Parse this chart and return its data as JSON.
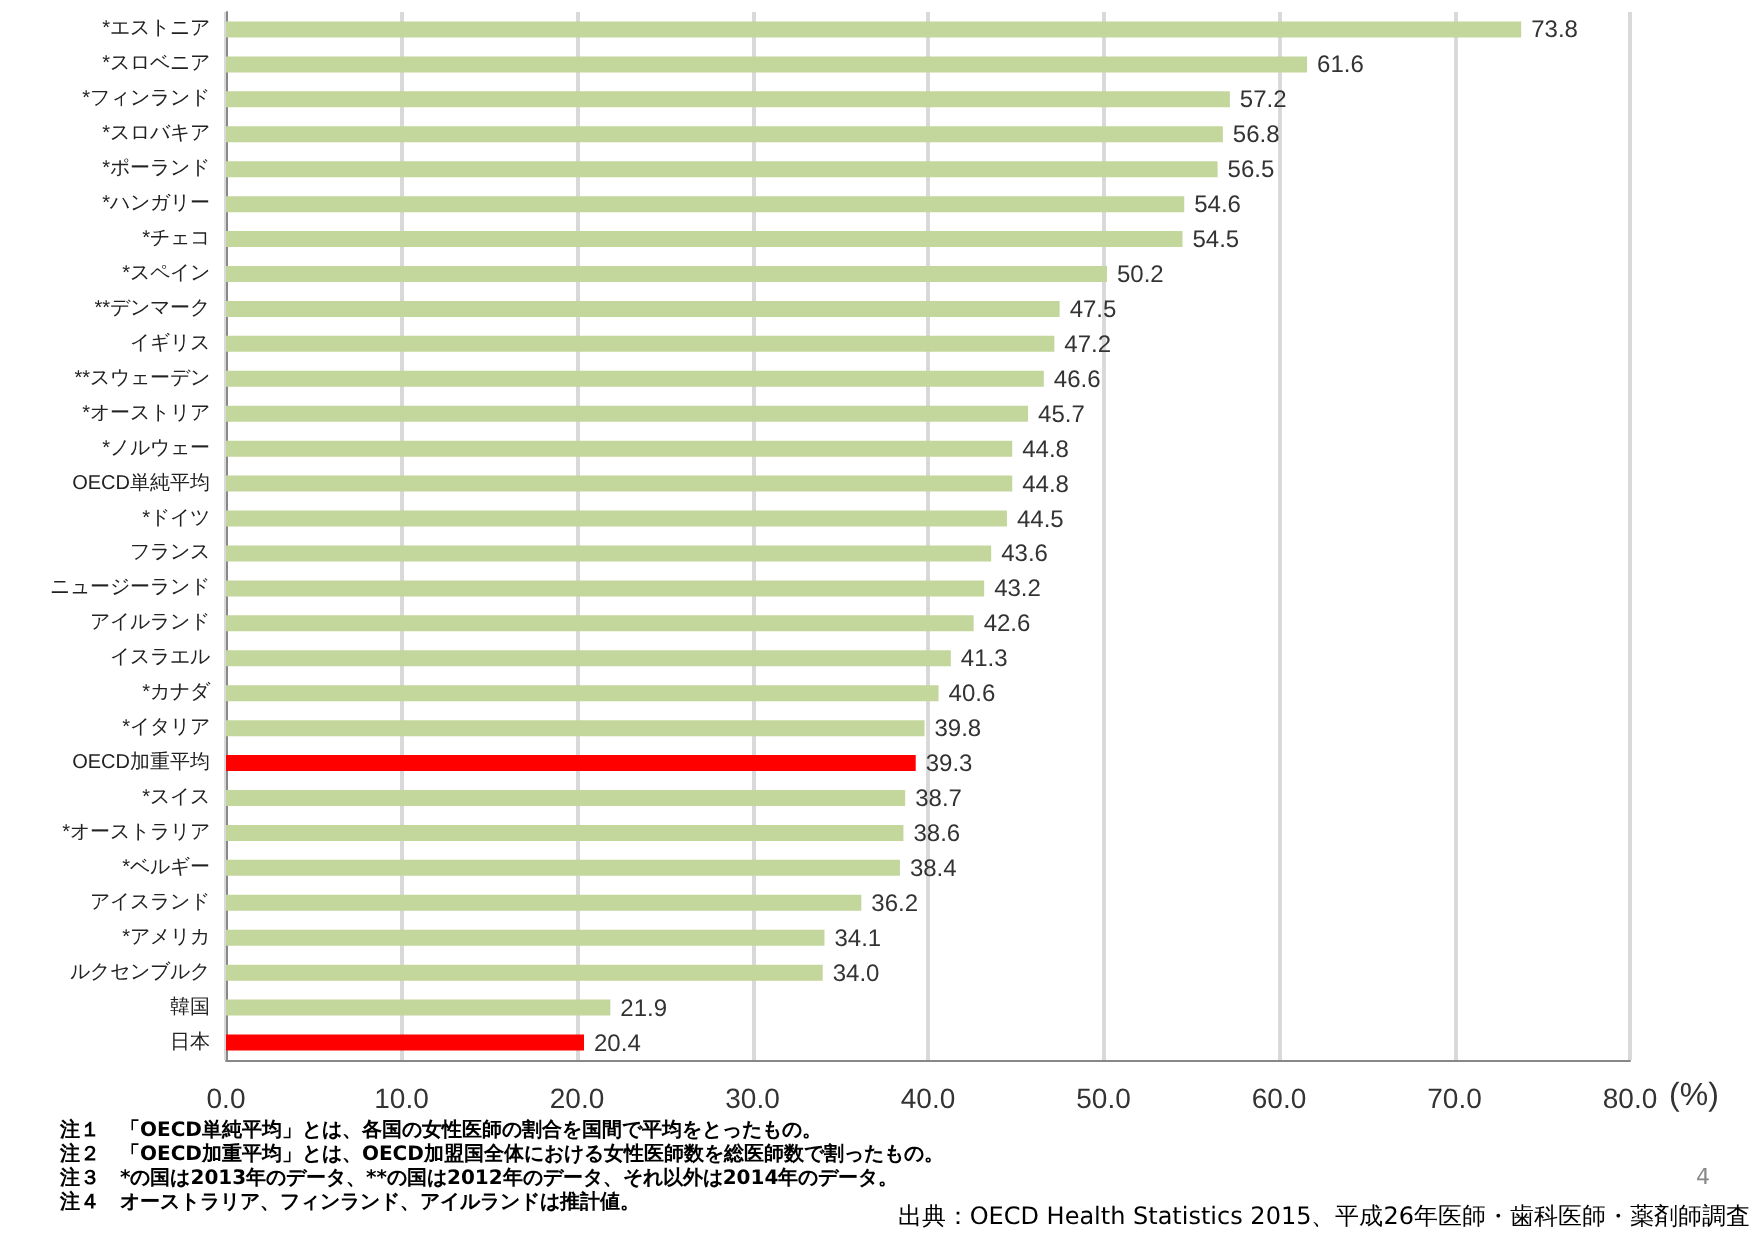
{
  "chart_data": {
    "type": "bar",
    "orientation": "horizontal",
    "xlabel": "(%)",
    "categories": [
      "*エストニア",
      "*スロベニア",
      "*フィンランド",
      "*スロバキア",
      "*ポーランド",
      "*ハンガリー",
      "*チェコ",
      "*スペイン",
      "**デンマーク",
      "イギリス",
      "**スウェーデン",
      "*オーストリア",
      "*ノルウェー",
      "OECD単純平均",
      "*ドイツ",
      "フランス",
      "ニュージーランド",
      "アイルランド",
      "イスラエル",
      "*カナダ",
      "*イタリア",
      "OECD加重平均",
      "*スイス",
      "*オーストラリア",
      "*ベルギー",
      "アイスランド",
      "*アメリカ",
      "ルクセンブルク",
      "韓国",
      "日本"
    ],
    "values": [
      73.8,
      61.6,
      57.2,
      56.8,
      56.5,
      54.6,
      54.5,
      50.2,
      47.5,
      47.2,
      46.6,
      45.7,
      44.8,
      44.8,
      44.5,
      43.6,
      43.2,
      42.6,
      41.3,
      40.6,
      39.8,
      39.3,
      38.7,
      38.6,
      38.4,
      36.2,
      34.1,
      34.0,
      21.9,
      20.4
    ],
    "value_labels": [
      "73.8",
      "61.6",
      "57.2",
      "56.8",
      "56.5",
      "54.6",
      "54.5",
      "50.2",
      "47.5",
      "47.2",
      "46.6",
      "45.7",
      "44.8",
      "44.8",
      "44.5",
      "43.6",
      "43.2",
      "42.6",
      "41.3",
      "40.6",
      "39.8",
      "39.3",
      "38.7",
      "38.6",
      "38.4",
      "36.2",
      "34.1",
      "34.0",
      "21.9",
      "20.4"
    ],
    "colors": [
      "#c3d69b",
      "#c3d69b",
      "#c3d69b",
      "#c3d69b",
      "#c3d69b",
      "#c3d69b",
      "#c3d69b",
      "#c3d69b",
      "#c3d69b",
      "#c3d69b",
      "#c3d69b",
      "#c3d69b",
      "#c3d69b",
      "#c3d69b",
      "#c3d69b",
      "#c3d69b",
      "#c3d69b",
      "#c3d69b",
      "#c3d69b",
      "#c3d69b",
      "#c3d69b",
      "#ff0000",
      "#c3d69b",
      "#c3d69b",
      "#c3d69b",
      "#c3d69b",
      "#c3d69b",
      "#c3d69b",
      "#c3d69b",
      "#ff0000"
    ],
    "xlim": [
      0,
      80
    ],
    "xticks": [
      {
        "value": 0,
        "label": "0.0"
      },
      {
        "value": 10,
        "label": "10.0"
      },
      {
        "value": 20,
        "label": "20.0"
      },
      {
        "value": 30,
        "label": "30.0"
      },
      {
        "value": 40,
        "label": "40.0"
      },
      {
        "value": 50,
        "label": "50.0"
      },
      {
        "value": 60,
        "label": "60.0"
      },
      {
        "value": 70,
        "label": "70.0"
      },
      {
        "value": 80,
        "label": "80.0"
      }
    ],
    "grid": "x",
    "annotations": [
      "注１　「OECD単純平均」とは、各国の女性医師の割合を国間で平均をとったもの。",
      "注２　「OECD加重平均」とは、OECD加盟国全体における女性医師数を総医師数で割ったもの。",
      "注３　*の国は2013年のデータ、**の国は2012年のデータ、それ以外は2014年のデータ。",
      "注４　オーストラリア、フィンランド、アイルランドは推計値。",
      "4",
      "出典：OECD Health Statistics 2015、平成26年医師・歯科医師・薬剤師調査"
    ]
  }
}
